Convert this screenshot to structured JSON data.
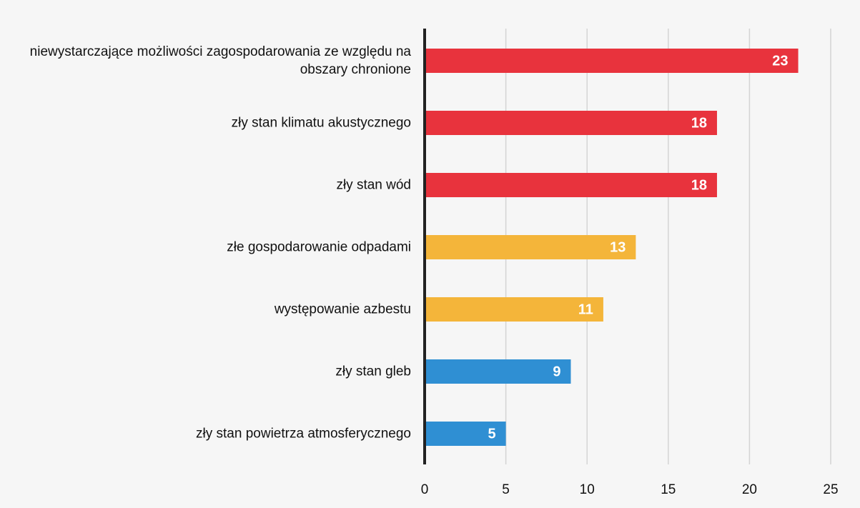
{
  "chart_data": {
    "type": "bar",
    "orientation": "horizontal",
    "categories": [
      "niewystarczające możliwości zagospodarowania ze względu na obszary chronione",
      "zły stan klimatu akustycznego",
      "zły stan wód",
      "złe gospodarowanie odpadami",
      "występowanie azbestu",
      "zły stan gleb",
      "zły stan powietrza atmosferycznego"
    ],
    "values": [
      23,
      18,
      18,
      13,
      11,
      9,
      5
    ],
    "colors": [
      "#e8333d",
      "#e8333d",
      "#e8333d",
      "#f4b53a",
      "#f4b53a",
      "#2f8fd3",
      "#2f8fd3"
    ],
    "xlim": [
      0,
      25
    ],
    "xticks": [
      0,
      5,
      10,
      15,
      20,
      25
    ],
    "grid": true
  }
}
